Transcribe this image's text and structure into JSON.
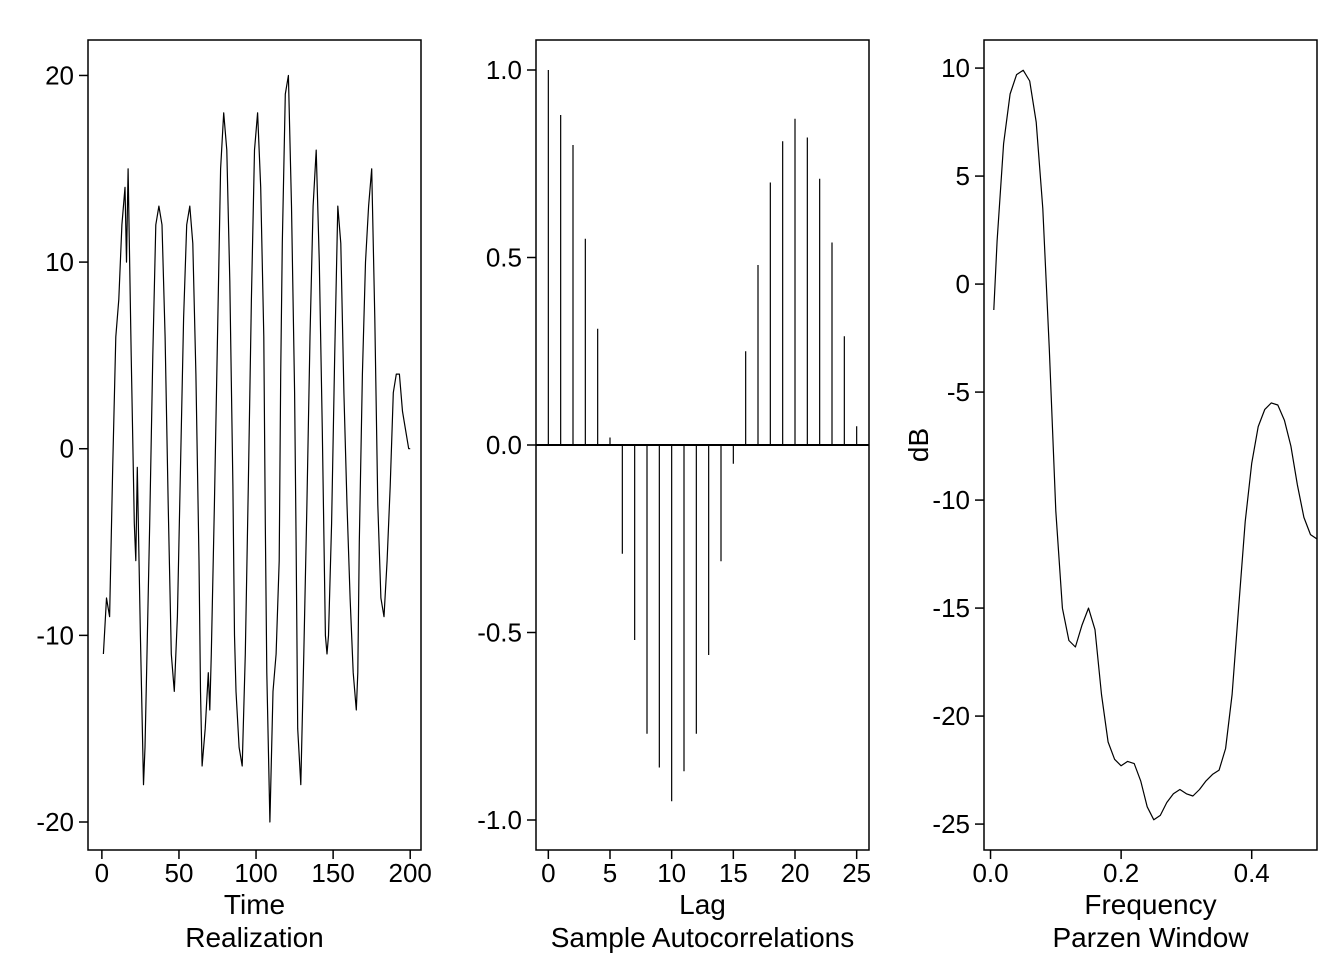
{
  "figure": {
    "background": "#ffffff",
    "line_color": "#000000"
  },
  "chart_data": [
    {
      "type": "line",
      "title": "",
      "xlabel": "Time",
      "caption": "Realization",
      "ylabel": "",
      "xlim": [
        -9,
        207
      ],
      "ylim": [
        -21.5,
        21.9
      ],
      "xticks": [
        0,
        50,
        100,
        150,
        200
      ],
      "yticks": [
        -20,
        -10,
        0,
        10,
        20
      ],
      "grid": false,
      "legend": "none",
      "series": [
        {
          "x": [
            1,
            3,
            5,
            7,
            9,
            11,
            13,
            15,
            16,
            17,
            19,
            21,
            22,
            23,
            25,
            27,
            28,
            29,
            31,
            33,
            35,
            37,
            39,
            41,
            43,
            45,
            47,
            49,
            51,
            53,
            55,
            57,
            59,
            61,
            63,
            64,
            65,
            67,
            69,
            70,
            71,
            73,
            75,
            77,
            79,
            81,
            83,
            85,
            86,
            87,
            89,
            91,
            93,
            95,
            97,
            99,
            101,
            103,
            105,
            106,
            107,
            109,
            111,
            113,
            115,
            116,
            117,
            119,
            121,
            123,
            125,
            126,
            127,
            129,
            131,
            133,
            135,
            137,
            139,
            141,
            143,
            145,
            146,
            147,
            149,
            151,
            153,
            155,
            157,
            159,
            161,
            163,
            165,
            166,
            167,
            169,
            171,
            173,
            175,
            177,
            179,
            181,
            183,
            185,
            187,
            189,
            191,
            193,
            195,
            197,
            199,
            200
          ],
          "y": [
            -11,
            -8,
            -9,
            -1,
            6,
            8,
            12,
            14,
            10,
            15,
            5,
            -4,
            -6,
            -1,
            -10,
            -18,
            -16,
            -12,
            -4,
            5,
            12,
            13,
            12,
            6,
            -3,
            -11,
            -13,
            -9,
            -1,
            7,
            12,
            13,
            11,
            4,
            -6,
            -13,
            -17,
            -15,
            -12,
            -14,
            -11,
            -3,
            6,
            15,
            18,
            16,
            9,
            -2,
            -10,
            -13,
            -16,
            -17,
            -11,
            -2,
            8,
            16,
            18,
            14,
            6,
            -4,
            -12,
            -20,
            -13,
            -11,
            -6,
            4,
            11,
            19,
            20,
            13,
            3,
            -5,
            -15,
            -18,
            -11,
            -3,
            6,
            13,
            16,
            10,
            1,
            -10,
            -11,
            -10,
            -4,
            5,
            13,
            11,
            3,
            -3,
            -8,
            -12,
            -14,
            -12,
            -5,
            4,
            10,
            13,
            15,
            7,
            -3,
            -8,
            -9,
            -6,
            -2,
            3,
            4,
            4,
            2,
            1,
            0,
            0
          ]
        }
      ]
    },
    {
      "type": "bar",
      "title": "",
      "xlabel": "Lag",
      "caption": "Sample Autocorrelations",
      "ylabel": "",
      "xlim": [
        -1,
        26
      ],
      "ylim": [
        -1.08,
        1.08
      ],
      "xticks": [
        0,
        5,
        10,
        15,
        20,
        25
      ],
      "yticks": [
        -1.0,
        -0.5,
        0.0,
        0.5,
        1.0
      ],
      "ytick_labels": [
        "-1.0",
        "-0.5",
        "0.0",
        "0.5",
        "1.0"
      ],
      "grid": false,
      "legend": "none",
      "categories": [
        0,
        1,
        2,
        3,
        4,
        5,
        6,
        7,
        8,
        9,
        10,
        11,
        12,
        13,
        14,
        15,
        16,
        17,
        18,
        19,
        20,
        21,
        22,
        23,
        24,
        25
      ],
      "values": [
        1.0,
        0.88,
        0.8,
        0.55,
        0.31,
        0.02,
        -0.29,
        -0.52,
        -0.77,
        -0.86,
        -0.95,
        -0.87,
        -0.77,
        -0.56,
        -0.31,
        -0.05,
        0.25,
        0.48,
        0.7,
        0.81,
        0.87,
        0.82,
        0.71,
        0.54,
        0.29,
        0.05
      ]
    },
    {
      "type": "line",
      "title": "",
      "xlabel": "Frequency",
      "caption": "Parzen Window",
      "ylabel": "dB",
      "xlim": [
        -0.01,
        0.5
      ],
      "ylim": [
        -26.2,
        11.3
      ],
      "xticks": [
        0.0,
        0.2,
        0.4
      ],
      "xtick_labels": [
        "0.0",
        "0.2",
        "0.4"
      ],
      "yticks": [
        -25,
        -20,
        -15,
        -10,
        -5,
        0,
        5,
        10
      ],
      "grid": false,
      "legend": "none",
      "series": [
        {
          "x": [
            0.005,
            0.01,
            0.02,
            0.03,
            0.04,
            0.05,
            0.06,
            0.07,
            0.08,
            0.09,
            0.1,
            0.11,
            0.12,
            0.13,
            0.14,
            0.15,
            0.16,
            0.17,
            0.18,
            0.19,
            0.2,
            0.21,
            0.22,
            0.23,
            0.24,
            0.25,
            0.26,
            0.27,
            0.28,
            0.29,
            0.3,
            0.31,
            0.32,
            0.33,
            0.34,
            0.35,
            0.36,
            0.37,
            0.38,
            0.39,
            0.4,
            0.41,
            0.42,
            0.43,
            0.44,
            0.45,
            0.46,
            0.47,
            0.48,
            0.49,
            0.5
          ],
          "y": [
            -1.2,
            2.0,
            6.5,
            8.8,
            9.7,
            9.9,
            9.4,
            7.5,
            3.5,
            -3.0,
            -10.5,
            -15.0,
            -16.5,
            -16.8,
            -15.8,
            -15.0,
            -16.0,
            -19.0,
            -21.2,
            -22.0,
            -22.3,
            -22.1,
            -22.2,
            -23.0,
            -24.2,
            -24.8,
            -24.6,
            -24.0,
            -23.6,
            -23.4,
            -23.6,
            -23.7,
            -23.4,
            -23.0,
            -22.7,
            -22.5,
            -21.5,
            -19.0,
            -15.0,
            -11.0,
            -8.3,
            -6.6,
            -5.8,
            -5.5,
            -5.6,
            -6.3,
            -7.5,
            -9.3,
            -10.8,
            -11.6,
            -11.8
          ]
        }
      ]
    }
  ]
}
